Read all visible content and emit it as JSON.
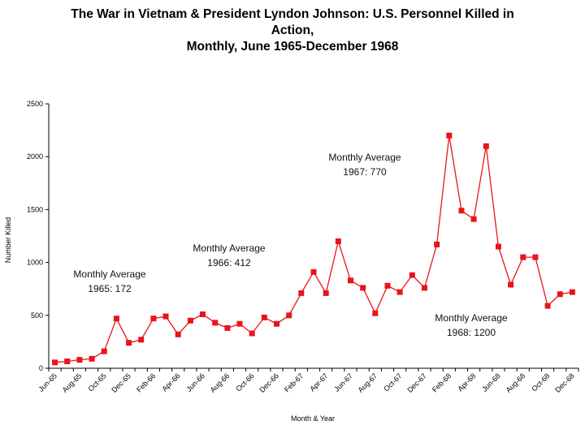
{
  "chart_data": {
    "type": "line",
    "title": [
      "The War in Vietnam & President Lyndon Johnson:  U.S. Personnel Killed in",
      "Action,",
      "Monthly, June 1965-December 1968"
    ],
    "xlabel": "Month & Year",
    "ylabel": "Number Killed",
    "ylim": [
      0,
      2500
    ],
    "yticks": [
      "0",
      "500",
      "1000",
      "1500",
      "2000",
      "2500"
    ],
    "ytick_values": [
      0,
      500,
      1000,
      1500,
      2000,
      2500
    ],
    "xtick_labels": [
      "Jun-65",
      "Aug-65",
      "Oct-65",
      "Dec-65",
      "Feb-66",
      "Apr-66",
      "Jun-66",
      "Aug-66",
      "Oct-66",
      "Dec-66",
      "Feb-67",
      "Apr-67",
      "Jun-67",
      "Aug-67",
      "Oct-67",
      "Dec-67",
      "Feb-68",
      "Apr-68",
      "Jun-68",
      "Aug-68",
      "Oct-68",
      "Dec-68"
    ],
    "grid": false,
    "series": [
      {
        "name": "U.S. Personnel Killed in Action",
        "color": "#e8141b",
        "values": [
          55,
          65,
          80,
          90,
          160,
          470,
          240,
          270,
          470,
          490,
          320,
          450,
          510,
          430,
          380,
          420,
          330,
          480,
          420,
          500,
          710,
          910,
          710,
          1200,
          830,
          760,
          520,
          780,
          720,
          880,
          760,
          1170,
          2200,
          1490,
          1410,
          2100,
          1150,
          790,
          1050,
          1050,
          590,
          700,
          720
        ]
      }
    ],
    "annotations": [
      {
        "lines": [
          "Monthly Average",
          "1965: 172"
        ]
      },
      {
        "lines": [
          "Monthly Average",
          "1966: 412"
        ]
      },
      {
        "lines": [
          "Monthly Average",
          "1967: 770"
        ]
      },
      {
        "lines": [
          "Monthly Average",
          "1968: 1200"
        ]
      }
    ]
  }
}
